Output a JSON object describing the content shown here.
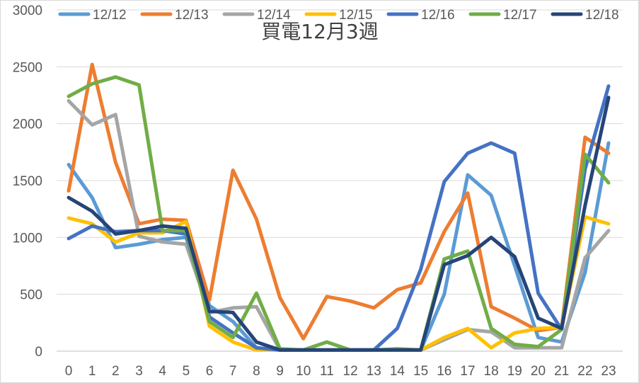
{
  "chart_data": {
    "type": "line",
    "title": "買電12月3週",
    "xlabel": "",
    "ylabel": "",
    "x": [
      0,
      1,
      2,
      3,
      4,
      5,
      6,
      7,
      8,
      9,
      10,
      11,
      12,
      13,
      14,
      15,
      16,
      17,
      18,
      19,
      20,
      21,
      22,
      23
    ],
    "ylim": [
      0,
      3000
    ],
    "yticks": [
      0,
      500,
      1000,
      1500,
      2000,
      2500,
      3000
    ],
    "grid": true,
    "legend": "top",
    "series": [
      {
        "name": "12/12",
        "color": "#5b9bd5",
        "values": [
          1640,
          1350,
          910,
          940,
          980,
          1000,
          400,
          260,
          30,
          10,
          10,
          10,
          10,
          10,
          10,
          10,
          500,
          1550,
          1370,
          750,
          120,
          80,
          690,
          1830
        ]
      },
      {
        "name": "12/13",
        "color": "#ed7d31",
        "values": [
          1410,
          2520,
          1660,
          1120,
          1160,
          1150,
          450,
          1590,
          1160,
          470,
          110,
          480,
          440,
          380,
          540,
          600,
          1050,
          1390,
          390,
          290,
          180,
          210,
          1880,
          1740
        ]
      },
      {
        "name": "12/14",
        "color": "#a5a5a5",
        "values": [
          2200,
          1990,
          2080,
          1010,
          960,
          940,
          340,
          380,
          390,
          10,
          10,
          10,
          10,
          10,
          10,
          10,
          100,
          190,
          170,
          30,
          30,
          30,
          820,
          1060
        ]
      },
      {
        "name": "12/15",
        "color": "#ffc000",
        "values": [
          1170,
          1120,
          960,
          1040,
          1040,
          1140,
          220,
          80,
          10,
          10,
          10,
          10,
          10,
          10,
          10,
          10,
          120,
          200,
          30,
          160,
          200,
          210,
          1180,
          1120
        ]
      },
      {
        "name": "12/16",
        "color": "#4472c4",
        "values": [
          990,
          1100,
          1050,
          1060,
          1060,
          1030,
          300,
          160,
          30,
          10,
          10,
          10,
          10,
          10,
          200,
          720,
          1490,
          1740,
          1830,
          1740,
          510,
          190,
          1600,
          2330
        ]
      },
      {
        "name": "12/17",
        "color": "#70ad47",
        "values": [
          2240,
          2350,
          2410,
          2340,
          1060,
          1060,
          260,
          120,
          510,
          20,
          10,
          80,
          10,
          10,
          20,
          10,
          810,
          880,
          200,
          60,
          40,
          190,
          1730,
          1480
        ]
      },
      {
        "name": "12/18",
        "color": "#264478",
        "values": [
          1350,
          1230,
          1030,
          1060,
          1100,
          1080,
          350,
          340,
          80,
          10,
          10,
          10,
          10,
          10,
          10,
          10,
          760,
          840,
          1000,
          830,
          290,
          200,
          1280,
          2230
        ]
      }
    ]
  }
}
